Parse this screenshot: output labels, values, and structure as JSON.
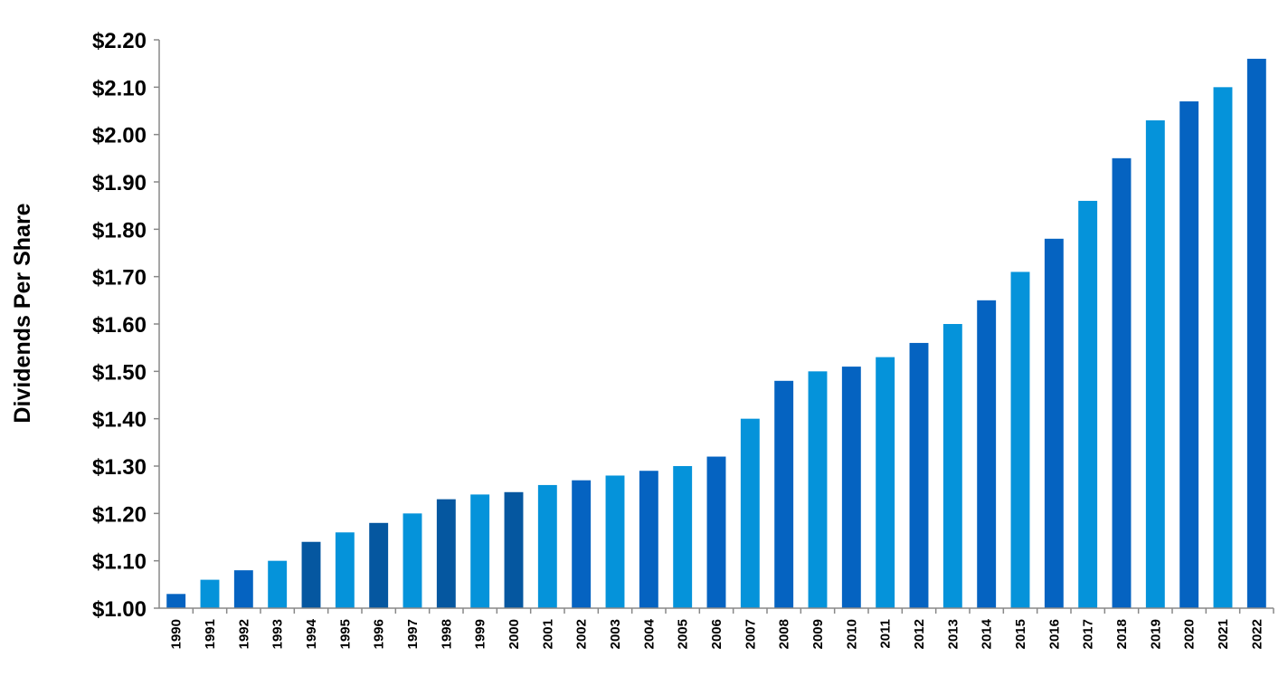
{
  "chart_data": {
    "type": "bar",
    "title": "",
    "xlabel": "",
    "ylabel": "Dividends Per Share",
    "ylim": [
      1.0,
      2.2
    ],
    "y_ticks": [
      "$1.00",
      "$1.10",
      "$1.20",
      "$1.30",
      "$1.40",
      "$1.50",
      "$1.60",
      "$1.70",
      "$1.80",
      "$1.90",
      "$2.00",
      "$2.10",
      "$2.20"
    ],
    "grid": false,
    "categories": [
      "1990",
      "1991",
      "1992",
      "1993",
      "1994",
      "1995",
      "1996",
      "1997",
      "1998",
      "1999",
      "2000",
      "2001",
      "2002",
      "2003",
      "2004",
      "2005",
      "2006",
      "2007",
      "2008",
      "2009",
      "2010",
      "2011",
      "2012",
      "2013",
      "2014",
      "2015",
      "2016",
      "2017",
      "2018",
      "2019",
      "2020",
      "2021",
      "2022"
    ],
    "values": [
      1.03,
      1.06,
      1.08,
      1.1,
      1.14,
      1.16,
      1.18,
      1.2,
      1.23,
      1.24,
      1.245,
      1.26,
      1.27,
      1.28,
      1.29,
      1.3,
      1.32,
      1.4,
      1.48,
      1.5,
      1.51,
      1.53,
      1.56,
      1.6,
      1.65,
      1.71,
      1.78,
      1.86,
      1.95,
      2.03,
      2.07,
      2.1,
      2.16
    ],
    "bar_colors": [
      "#0563C1",
      "#0593DA",
      "#0563C1",
      "#0593DA",
      "#0557A0",
      "#0593DA",
      "#0557A0",
      "#0593DA",
      "#0557A0",
      "#0593DA",
      "#0557A0",
      "#0593DA",
      "#0563C1",
      "#0593DA",
      "#0563C1",
      "#0593DA",
      "#0563C1",
      "#0593DA",
      "#0563C1",
      "#0593DA",
      "#0563C1",
      "#0593DA",
      "#0563C1",
      "#0593DA",
      "#0563C1",
      "#0593DA",
      "#0563C1",
      "#0593DA",
      "#0563C1",
      "#0593DA",
      "#0563C1",
      "#0593DA",
      "#0563C1"
    ]
  }
}
